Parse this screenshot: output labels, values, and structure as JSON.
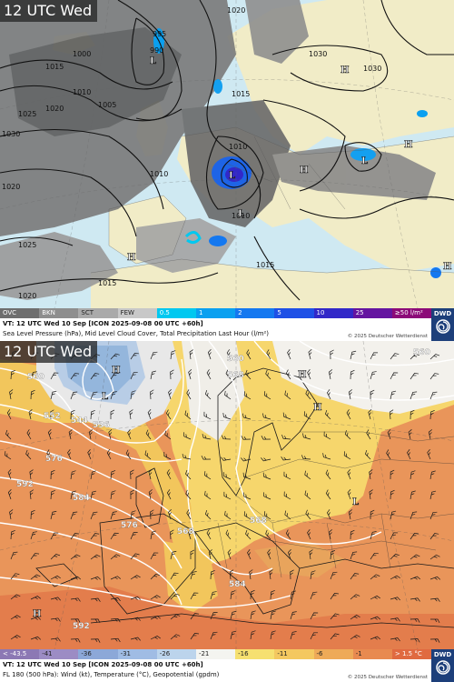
{
  "top_panel": {
    "time_label": "12 UTC Wed",
    "legend": [
      {
        "label": "OVC",
        "color": "#6e6e6e"
      },
      {
        "label": "BKN",
        "color": "#8e8e8e"
      },
      {
        "label": "SCT",
        "color": "#aaaaaa"
      },
      {
        "label": "FEW",
        "color": "#c8c8c8"
      },
      {
        "label": "0.5",
        "color": "#00c8f0"
      },
      {
        "label": "1",
        "color": "#0aa0f0"
      },
      {
        "label": "2",
        "color": "#1478f0"
      },
      {
        "label": "5",
        "color": "#1e50e6"
      },
      {
        "label": "10",
        "color": "#3228c8"
      },
      {
        "label": "25",
        "color": "#6414a0"
      },
      {
        "label": "≥50 l/m²",
        "color": "#8c0a78"
      }
    ],
    "caption_line1": "VT: 12 UTC Wed   10 Sep [ICON 2025-09-08 00 UTC +60h]",
    "caption_line2": "Sea Level Pressure (hPa), Mid Level Cloud Cover, Total Precipitation Last Hour (l/m²)",
    "copyright": "© 2025 Deutscher Wetterdienst",
    "logo_text": "DWD",
    "isobar_labels": [
      "1020",
      "1015",
      "1010",
      "1005",
      "1030",
      "1025",
      "1030",
      "1020",
      "1025",
      "1020",
      "1015",
      "1010",
      "1010",
      "1015",
      "1015",
      "1020",
      "1030",
      "1010",
      "995",
      "990",
      "1000"
    ],
    "pressure_centers": [
      "H",
      "L",
      "L",
      "H",
      "L",
      "L",
      "H",
      "H",
      "H"
    ]
  },
  "bottom_panel": {
    "time_label": "12 UTC Wed",
    "legend": [
      {
        "label": "< -43.5",
        "color": "#8c78b4"
      },
      {
        "label": "-41",
        "color": "#9c8cc4"
      },
      {
        "label": "-36",
        "color": "#8ca8d8"
      },
      {
        "label": "-31",
        "color": "#a0bce4"
      },
      {
        "label": "-26",
        "color": "#bcd4ec"
      },
      {
        "label": "-21",
        "color": "#f4f4f0"
      },
      {
        "label": "-16",
        "color": "#f6e070"
      },
      {
        "label": "-11",
        "color": "#f4c860"
      },
      {
        "label": "-6",
        "color": "#eeaa58"
      },
      {
        "label": "-1",
        "color": "#e88a50"
      },
      {
        "label": "> 1.5 °C",
        "color": "#e06a40"
      }
    ],
    "caption_line1": "VT: 12 UTC Wed   10 Sep [ICON 2025-09-08 00 UTC +60h]",
    "caption_line2": "FL 180 (500 hPa): Wind (kt), Temperature (°C), Geopotential (gpdm)",
    "copyright": "© 2025 Deutscher Wetterdienst",
    "logo_text": "DWD",
    "geopotential_labels": [
      "560",
      "552",
      "560",
      "568",
      "536",
      "544",
      "576",
      "592",
      "584",
      "576",
      "568",
      "584",
      "592",
      "568",
      "560"
    ],
    "pressure_centers": [
      "H",
      "L",
      "L",
      "H",
      "H",
      "H"
    ]
  }
}
